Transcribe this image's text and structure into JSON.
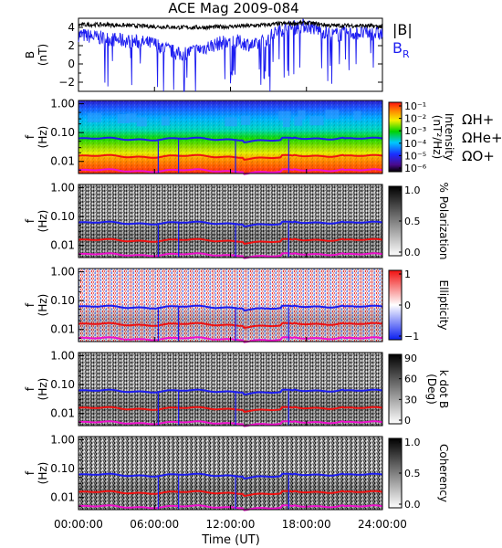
{
  "title": "ACE Mag 2009-084",
  "colors": {
    "btotal": "#000000",
    "br": "#1d1df0",
    "h_plus": "#1d1df0",
    "he_plus": "#ee1111",
    "o_plus": "#ee11cc"
  },
  "x_axis": {
    "label": "Time (UT)",
    "ticks": [
      "00:00:00",
      "06:00:00",
      "12:00:00",
      "18:00:00",
      "24:00:00"
    ],
    "range_hours": [
      0,
      24
    ]
  },
  "freq_axis": {
    "label": "f",
    "unit": "(Hz)",
    "ticks": [
      "1.00",
      "0.10",
      "0.01"
    ]
  },
  "gyro_labels": {
    "h_plus": "ΩH+",
    "he_plus": "ΩHe+",
    "o_plus": "ΩO+"
  },
  "panels": [
    {
      "id": "intensity",
      "colorbar": "rainbow",
      "cbar_label": "Intensity",
      "cbar_unit": "(nT²/Hz)",
      "cbar_ticks": [
        "10⁻¹",
        "10⁻²",
        "10⁻³",
        "10⁻⁴",
        "10⁻⁵",
        "10⁻⁶"
      ]
    },
    {
      "id": "polarization",
      "colorbar": "gray",
      "cbar_label": "% Polarization",
      "cbar_ticks": [
        "1.0",
        "0.5",
        "0.0"
      ]
    },
    {
      "id": "ellipticity",
      "colorbar": "bwr",
      "cbar_label": "Ellipticity",
      "cbar_ticks": [
        "1",
        "0",
        "−1"
      ]
    },
    {
      "id": "kdotb",
      "colorbar": "gray",
      "cbar_label": "k dot B",
      "cbar_unit": "(Deg)",
      "cbar_ticks": [
        "90",
        "60",
        "30",
        "0"
      ]
    },
    {
      "id": "coherency",
      "colorbar": "gray",
      "cbar_label": "Coherency",
      "cbar_ticks": [
        "1.0",
        "0.5",
        "0.0"
      ]
    }
  ],
  "chart_data": {
    "type": "line",
    "title": "ACE Mag 2009-084",
    "xlabel": "Time (UT)",
    "ylabel": "B (nT)",
    "ylim": [
      -3,
      5
    ],
    "y_ticks": [
      "4",
      "2",
      "0",
      "−2"
    ],
    "y_label_main": "B",
    "y_label_unit": "(nT)",
    "x": [
      0,
      2,
      4,
      6,
      8,
      10,
      12,
      14,
      16,
      18,
      20,
      22,
      24
    ],
    "series": [
      {
        "name": "|B|",
        "values": [
          4.3,
          4.3,
          4.2,
          4.1,
          4.0,
          4.0,
          4.1,
          4.2,
          4.4,
          4.5,
          4.2,
          4.2,
          4.1
        ]
      },
      {
        "name": "BR",
        "values": [
          3.2,
          2.8,
          2.5,
          2.2,
          1.0,
          1.8,
          2.6,
          2.0,
          3.8,
          4.2,
          3.2,
          3.4,
          3.3
        ]
      }
    ]
  }
}
